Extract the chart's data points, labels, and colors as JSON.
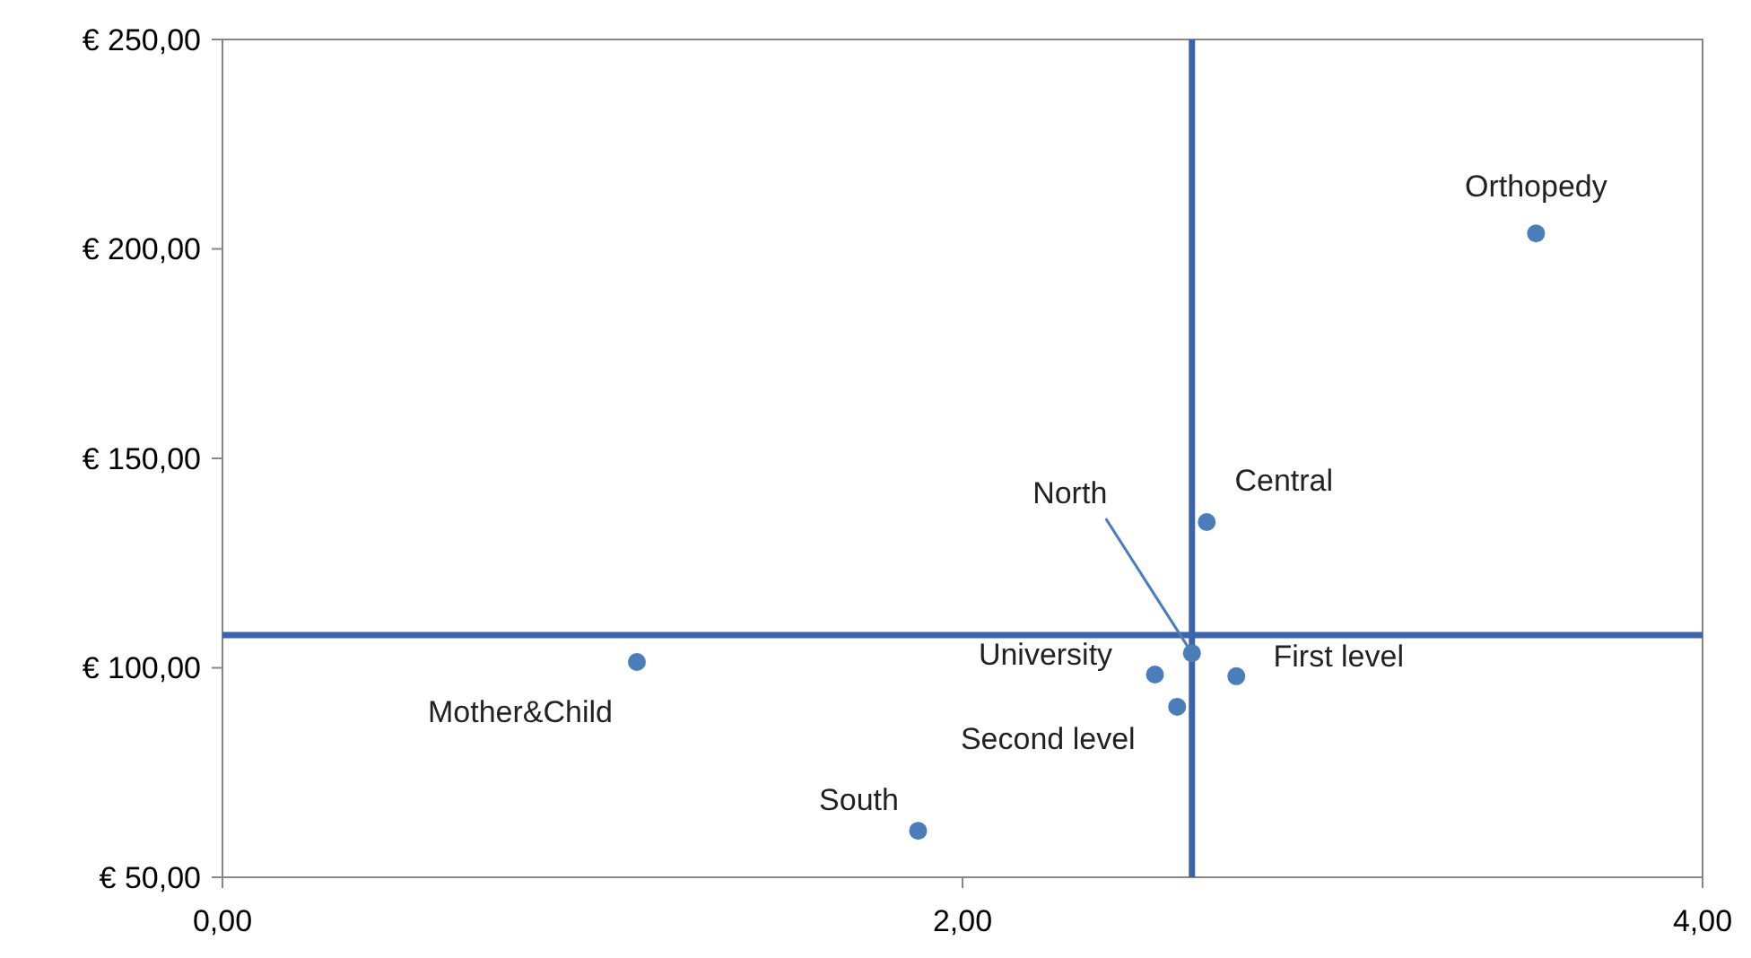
{
  "chart_data": {
    "type": "scatter",
    "x": [
      3.55,
      2.66,
      2.62,
      2.52,
      2.74,
      2.58,
      1.12,
      1.88
    ],
    "series": [
      {
        "color": "#4a7ebb",
        "values": [
          203.7,
          134.8,
          103.5,
          98.4,
          98,
          90.7,
          101.4,
          61.1
        ]
      }
    ],
    "marker": "circle",
    "xlim": [
      0,
      4
    ],
    "xticks": [
      {
        "value": 0,
        "label": "0,00"
      },
      {
        "value": 2,
        "label": "2,00"
      },
      {
        "value": 4,
        "label": "4,00"
      }
    ],
    "ylim": [
      50,
      250
    ],
    "yticks": [
      {
        "value": 50,
        "label": "€ 50,00"
      },
      {
        "value": 100,
        "label": "€ 100,00"
      },
      {
        "value": 150,
        "label": "€ 150,00"
      },
      {
        "value": 200,
        "label": "€ 200,00"
      },
      {
        "value": 250,
        "label": "€ 250,00"
      }
    ],
    "ref_lines": [
      {
        "axis": "x",
        "value": 2.62,
        "color": "#3a64ad"
      },
      {
        "axis": "y",
        "value": 107.8,
        "color": "#3a64ad"
      }
    ],
    "annotations": [
      {
        "text": "Orthopedy",
        "x": 3.55,
        "y": 203.7
      },
      {
        "text": "Central",
        "x": 2.66,
        "y": 134.8
      },
      {
        "text": "North",
        "x": 2.62,
        "y": 103.5
      },
      {
        "text": "University",
        "x": 2.52,
        "y": 98.4
      },
      {
        "text": "First level",
        "x": 2.74,
        "y": 98
      },
      {
        "text": "Second level",
        "x": 2.58,
        "y": 90.7
      },
      {
        "text": "Mother&Child",
        "x": 1.12,
        "y": 101.4
      },
      {
        "text": "South",
        "x": 1.88,
        "y": 61.1
      }
    ],
    "grid": false
  }
}
